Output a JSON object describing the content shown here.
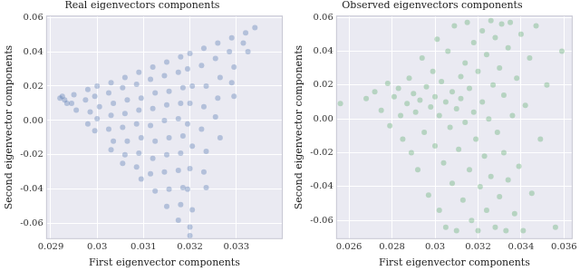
{
  "chart_data": [
    {
      "type": "scatter",
      "title": "Real eigenvectors components",
      "x_label": "First eigenvector components",
      "y_label": "Second eigenvector components",
      "color": "#4c72b0",
      "grid": true,
      "xlim": [
        0.0289,
        0.034
      ],
      "ylim": [
        -0.069,
        0.061
      ],
      "xticks": [
        0.029,
        0.03,
        0.031,
        0.032,
        0.033
      ],
      "yticks": [
        -0.06,
        -0.04,
        -0.02,
        {
          "value": 0,
          "label": "0.00"
        },
        0.02,
        0.04,
        0.06
      ],
      "x": [
        0.0292,
        0.0293,
        0.02925,
        0.02935,
        0.0295,
        0.02945,
        0.02955,
        0.0298,
        0.02975,
        0.02985,
        0.0298,
        0.03,
        0.02995,
        0.03005,
        0.03,
        0.02995,
        0.0303,
        0.03025,
        0.03035,
        0.0303,
        0.03025,
        0.03035,
        0.0303,
        0.0306,
        0.03055,
        0.03065,
        0.0306,
        0.03055,
        0.03065,
        0.0306,
        0.03055,
        0.0309,
        0.03085,
        0.03095,
        0.0309,
        0.03085,
        0.03095,
        0.0309,
        0.03085,
        0.03095,
        0.0312,
        0.03115,
        0.03125,
        0.0312,
        0.03115,
        0.03125,
        0.0312,
        0.03115,
        0.03125,
        0.0315,
        0.03145,
        0.03155,
        0.0315,
        0.03145,
        0.03155,
        0.0315,
        0.03145,
        0.03155,
        0.0315,
        0.0318,
        0.03175,
        0.03185,
        0.0318,
        0.03175,
        0.03185,
        0.0318,
        0.03175,
        0.03185,
        0.0318,
        0.03175,
        0.032,
        0.03195,
        0.03205,
        0.032,
        0.03195,
        0.03205,
        0.032,
        0.03195,
        0.03205,
        0.032,
        0.032,
        0.0323,
        0.03225,
        0.03235,
        0.0323,
        0.03225,
        0.03235,
        0.0323,
        0.03235,
        0.0326,
        0.03255,
        0.03265,
        0.0326,
        0.03255,
        0.03265,
        0.0329,
        0.03285,
        0.03295,
        0.0329,
        0.03295,
        0.0332,
        0.03315,
        0.03325,
        0.0334
      ],
      "values": [
        0.013,
        0.012,
        0.014,
        0.01,
        0.015,
        0.01,
        0.006,
        0.018,
        0.012,
        0.005,
        -0.002,
        0.02,
        0.014,
        0.008,
        0.001,
        -0.006,
        0.022,
        0.016,
        0.01,
        0.003,
        -0.005,
        -0.012,
        -0.017,
        0.025,
        0.019,
        0.012,
        0.004,
        -0.004,
        -0.012,
        -0.02,
        -0.025,
        0.028,
        0.021,
        0.013,
        0.006,
        -0.002,
        -0.01,
        -0.019,
        -0.027,
        -0.034,
        0.031,
        0.024,
        0.016,
        0.007,
        -0.003,
        -0.012,
        -0.022,
        -0.031,
        -0.041,
        0.034,
        0.026,
        0.017,
        0.009,
        0,
        -0.01,
        -0.02,
        -0.03,
        -0.04,
        -0.05,
        0.037,
        0.028,
        0.019,
        0.01,
        0.001,
        -0.009,
        -0.019,
        -0.029,
        -0.039,
        -0.049,
        -0.058,
        0.039,
        0.03,
        0.02,
        0.01,
        -0.002,
        -0.015,
        -0.028,
        -0.04,
        -0.052,
        -0.062,
        -0.067,
        0.042,
        0.032,
        0.02,
        0.008,
        -0.005,
        -0.018,
        -0.03,
        -0.039,
        0.045,
        0.036,
        0.025,
        0.013,
        0.002,
        -0.01,
        0.048,
        0.04,
        0.031,
        0.022,
        0.014,
        0.051,
        0.045,
        0.04,
        0.054
      ]
    },
    {
      "type": "scatter",
      "title": "Observed eigenvectors components",
      "x_label": "First eigenvector components",
      "y_label": "Second eigenvector components",
      "color": "#55a868",
      "grid": true,
      "xlim": [
        0.0254,
        0.0364
      ],
      "ylim": [
        -0.071,
        0.061
      ],
      "xticks": [
        0.026,
        0.028,
        0.03,
        0.032,
        0.034,
        0.036
      ],
      "yticks": [
        -0.06,
        -0.04,
        -0.02,
        {
          "value": 0,
          "label": "0.00"
        },
        0.02,
        0.04,
        0.06
      ],
      "x": [
        0.0256,
        0.0268,
        0.0272,
        0.0275,
        0.0278,
        0.0279,
        0.0281,
        0.0283,
        0.0284,
        0.0285,
        0.0287,
        0.0288,
        0.0289,
        0.029,
        0.0291,
        0.0292,
        0.0293,
        0.0294,
        0.0295,
        0.0296,
        0.0297,
        0.0298,
        0.0299,
        0.03,
        0.03,
        0.0301,
        0.0302,
        0.0302,
        0.0303,
        0.0304,
        0.0305,
        0.0305,
        0.0306,
        0.0307,
        0.0308,
        0.0308,
        0.0309,
        0.031,
        0.031,
        0.0311,
        0.0312,
        0.0312,
        0.0313,
        0.0314,
        0.0314,
        0.0315,
        0.0316,
        0.0316,
        0.0317,
        0.0318,
        0.0318,
        0.0319,
        0.032,
        0.032,
        0.0321,
        0.0322,
        0.0322,
        0.0323,
        0.0324,
        0.0324,
        0.0325,
        0.0326,
        0.0326,
        0.0327,
        0.0328,
        0.0328,
        0.0329,
        0.033,
        0.033,
        0.0331,
        0.0332,
        0.0332,
        0.0333,
        0.0334,
        0.0334,
        0.0335,
        0.0336,
        0.0337,
        0.0338,
        0.0339,
        0.034,
        0.0341,
        0.0342,
        0.0344,
        0.0345,
        0.0347,
        0.0349,
        0.0352,
        0.0356,
        0.0359
      ],
      "values": [
        0.009,
        0.012,
        0.016,
        0.005,
        0.021,
        -0.004,
        0.013,
        0.018,
        0.002,
        -0.012,
        0.009,
        0.024,
        -0.02,
        0.015,
        0.004,
        -0.03,
        0.011,
        0.036,
        -0.008,
        0.019,
        -0.045,
        0.007,
        0.028,
        -0.016,
        0.013,
        0.047,
        -0.054,
        0.002,
        0.022,
        -0.026,
        0.01,
        -0.064,
        0.04,
        -0.005,
        0.016,
        -0.038,
        0.055,
        0.006,
        -0.066,
        -0.018,
        0.025,
        0.012,
        -0.048,
        0.033,
        -0.002,
        0.057,
        -0.03,
        0.018,
        -0.06,
        0.045,
        0.004,
        -0.012,
        0.028,
        -0.066,
        -0.04,
        0.052,
        0.01,
        -0.022,
        0.038,
        -0.054,
        0,
        0.058,
        -0.034,
        0.02,
        -0.064,
        0.048,
        -0.008,
        0.03,
        -0.046,
        0.056,
        -0.02,
        0.014,
        -0.066,
        0.042,
        -0.036,
        0.057,
        0.002,
        -0.056,
        0.024,
        -0.028,
        0.05,
        -0.066,
        0.008,
        0.036,
        -0.044,
        0.055,
        -0.012,
        0.02,
        -0.064,
        0.04
      ]
    }
  ]
}
